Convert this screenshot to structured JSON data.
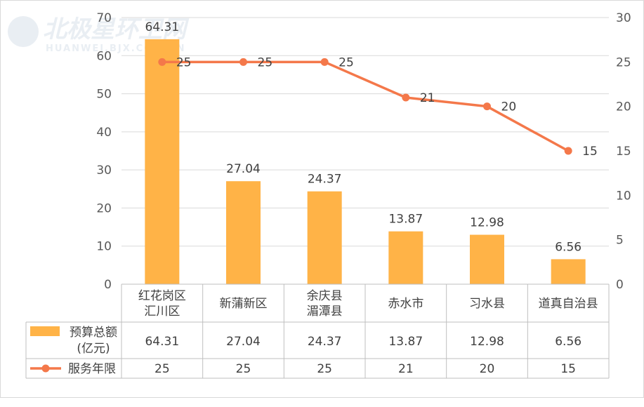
{
  "watermark": {
    "text": "北极星环卫网",
    "subtext": "HUANWEI.BJX.COM.CN"
  },
  "chart_data": {
    "type": "bar",
    "categories": [
      [
        "红花岗区",
        "汇川区"
      ],
      [
        "新蒲新区"
      ],
      [
        "余庆县",
        "湄潭县"
      ],
      [
        "赤水市"
      ],
      [
        "习水县"
      ],
      [
        "道真自治县"
      ]
    ],
    "series": [
      {
        "name": "预算总额(亿元)",
        "legend_lines": [
          "预算总额",
          "(亿元)"
        ],
        "type": "bar",
        "axis": "left",
        "color": "#FFB347",
        "values": [
          64.31,
          27.04,
          24.37,
          13.87,
          12.98,
          6.56
        ],
        "labels": [
          "64.31",
          "27.04",
          "24.37",
          "13.87",
          "12.98",
          "6.56"
        ]
      },
      {
        "name": "服务年限",
        "legend_lines": [
          "服务年限"
        ],
        "type": "line",
        "axis": "right",
        "color": "#F4784A",
        "values": [
          25,
          25,
          25,
          21,
          20,
          15
        ],
        "labels": [
          "25",
          "25",
          "25",
          "21",
          "20",
          "15"
        ]
      }
    ],
    "y_left": {
      "min": 0,
      "max": 70,
      "ticks": [
        "0",
        "10",
        "20",
        "30",
        "40",
        "50",
        "60",
        "70"
      ]
    },
    "y_right": {
      "min": 0,
      "max": 30,
      "ticks": [
        "0",
        "5",
        "10",
        "15",
        "20",
        "25",
        "30"
      ]
    },
    "grid": true,
    "legend": "data-table"
  }
}
